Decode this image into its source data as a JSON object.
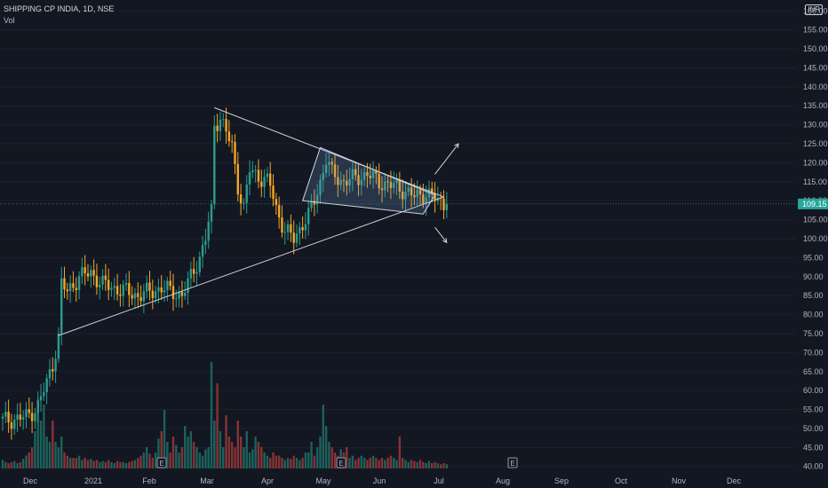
{
  "header": {
    "symbol_line": "SHIPPING CP INDIA, 1D, NSE",
    "volume_label": "Vol",
    "currency": "INR"
  },
  "colors": {
    "background": "#131722",
    "up": "#26a69a",
    "down": "#ef5350",
    "candle_up": "#2a9d8f",
    "candle_down": "#f5a623",
    "trendline": "#d1d4dc",
    "price_badge": "#26a69a"
  },
  "chart_data": {
    "type": "candlestick",
    "title": "SHIPPING CP INDIA, 1D, NSE",
    "currency": "INR",
    "y_ticks": [
      40,
      45,
      50,
      55,
      60,
      65,
      70,
      75,
      80,
      85,
      90,
      95,
      100,
      105,
      110,
      115,
      120,
      125,
      130,
      135,
      140,
      145,
      150,
      155,
      160
    ],
    "y_tick_labels": [
      "40.00",
      "45.00",
      "50.00",
      "55.00",
      "60.00",
      "65.00",
      "70.00",
      "75.00",
      "80.00",
      "85.00",
      "90.00",
      "95.00",
      "100.00",
      "105.00",
      "110.00",
      "115.00",
      "120.00",
      "125.00",
      "130.00",
      "135.00",
      "140.00",
      "145.00",
      "150.00",
      "155.00",
      "160.00"
    ],
    "ylim": [
      39,
      161
    ],
    "x_ticks": [
      "Dec",
      "2021",
      "Feb",
      "Mar",
      "Apr",
      "May",
      "Jun",
      "Jul",
      "Aug",
      "Sep",
      "Oct",
      "Nov",
      "Dec"
    ],
    "last_price": 109.15,
    "last_price_label": "109.15",
    "earnings_markers": [
      "Feb",
      "May",
      "Aug"
    ],
    "earnings_label": "E",
    "price_anchors": [
      [
        0,
        52
      ],
      [
        8,
        53
      ],
      [
        12,
        56
      ],
      [
        15,
        62
      ],
      [
        17,
        67
      ],
      [
        19,
        74
      ],
      [
        20,
        88
      ],
      [
        22,
        86
      ],
      [
        26,
        90
      ],
      [
        30,
        91
      ],
      [
        34,
        88
      ],
      [
        38,
        87
      ],
      [
        42,
        86
      ],
      [
        46,
        85
      ],
      [
        50,
        86
      ],
      [
        54,
        87
      ],
      [
        58,
        86
      ],
      [
        61,
        85
      ],
      [
        63,
        88
      ],
      [
        65,
        92
      ],
      [
        67,
        95
      ],
      [
        69,
        100
      ],
      [
        70,
        104
      ],
      [
        71,
        107
      ],
      [
        72,
        130
      ],
      [
        74,
        132
      ],
      [
        76,
        128
      ],
      [
        78,
        124
      ],
      [
        80,
        114
      ],
      [
        82,
        108
      ],
      [
        84,
        118
      ],
      [
        86,
        117
      ],
      [
        88,
        116
      ],
      [
        90,
        115
      ],
      [
        91,
        114
      ],
      [
        93,
        108
      ],
      [
        96,
        102
      ],
      [
        99,
        100
      ],
      [
        102,
        104
      ],
      [
        104,
        106
      ],
      [
        106,
        110
      ],
      [
        108,
        115
      ],
      [
        110,
        121
      ],
      [
        112,
        117
      ],
      [
        116,
        115
      ],
      [
        120,
        116
      ],
      [
        124,
        117
      ],
      [
        128,
        115
      ],
      [
        132,
        114
      ],
      [
        136,
        113
      ],
      [
        140,
        111
      ],
      [
        144,
        112
      ],
      [
        148,
        110
      ],
      [
        151,
        109.15
      ]
    ],
    "volume_rel": [
      0.08,
      0.06,
      0.05,
      0.06,
      0.07,
      0.05,
      0.06,
      0.09,
      0.12,
      0.15,
      0.2,
      0.35,
      0.65,
      0.45,
      0.6,
      0.3,
      0.25,
      0.45,
      0.25,
      0.2,
      0.3,
      0.15,
      0.12,
      0.1,
      0.1,
      0.1,
      0.12,
      0.08,
      0.1,
      0.08,
      0.09,
      0.07,
      0.08,
      0.06,
      0.07,
      0.06,
      0.08,
      0.06,
      0.05,
      0.07,
      0.06,
      0.06,
      0.05,
      0.06,
      0.07,
      0.08,
      0.1,
      0.12,
      0.15,
      0.2,
      0.14,
      0.1,
      0.15,
      0.28,
      0.35,
      0.55,
      0.25,
      0.15,
      0.3,
      0.22,
      0.15,
      0.2,
      0.4,
      0.3,
      0.35,
      0.25,
      0.2,
      0.15,
      0.12,
      0.18,
      0.2,
      1.0,
      0.45,
      0.8,
      0.35,
      0.2,
      0.5,
      0.3,
      0.25,
      0.2,
      0.45,
      0.3,
      0.2,
      0.35,
      0.15,
      0.18,
      0.3,
      0.25,
      0.2,
      0.15,
      0.12,
      0.1,
      0.15,
      0.12,
      0.12,
      0.1,
      0.08,
      0.1,
      0.09,
      0.12,
      0.1,
      0.08,
      0.1,
      0.15,
      0.15,
      0.25,
      0.12,
      0.2,
      0.3,
      0.6,
      0.4,
      0.25,
      0.2,
      0.15,
      0.12,
      0.18,
      0.15,
      0.2,
      0.1,
      0.12,
      0.08,
      0.1,
      0.12,
      0.1,
      0.08,
      0.1,
      0.12,
      0.1,
      0.08,
      0.1,
      0.08,
      0.1,
      0.12,
      0.1,
      0.08,
      0.3,
      0.1,
      0.08,
      0.06,
      0.08,
      0.07,
      0.06,
      0.08,
      0.06,
      0.05,
      0.07,
      0.05,
      0.06,
      0.05,
      0.04,
      0.05,
      0.04
    ],
    "trendlines": [
      {
        "from": [
          19,
          74.5
        ],
        "to": [
          150,
          111
        ]
      },
      {
        "from": [
          72,
          134.5
        ],
        "to": [
          150,
          111
        ]
      }
    ],
    "pennant": [
      [
        108,
        124
      ],
      [
        147,
        111.5
      ],
      [
        143,
        106.5
      ],
      [
        102,
        110
      ]
    ],
    "arrows": [
      {
        "from": [
          147,
          117
        ],
        "to": [
          155,
          125
        ]
      },
      {
        "from": [
          147,
          103
        ],
        "to": [
          151,
          99
        ]
      }
    ]
  }
}
